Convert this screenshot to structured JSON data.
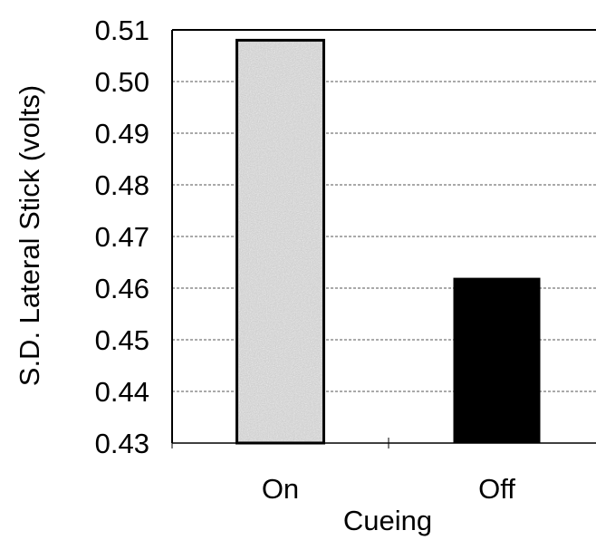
{
  "chart_data": {
    "type": "bar",
    "categories": [
      "On",
      "Off"
    ],
    "values": [
      0.508,
      0.462
    ],
    "title": "",
    "xlabel": "Cueing",
    "ylabel": "S.D. Lateral Stick (volts)",
    "ylim": [
      0.43,
      0.51
    ],
    "yticks": [
      "0.43",
      "0.44",
      "0.45",
      "0.46",
      "0.47",
      "0.48",
      "0.49",
      "0.50",
      "0.51"
    ],
    "grid": true,
    "legend": "none",
    "colors": {
      "On": "#c8c8c8",
      "Off": "#000000"
    }
  }
}
